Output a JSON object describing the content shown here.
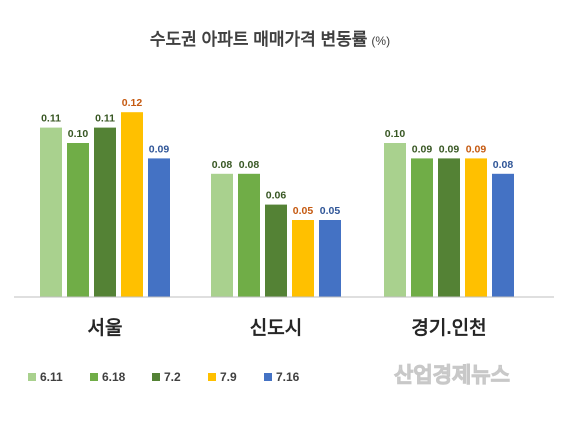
{
  "chart_data": {
    "type": "bar",
    "title": "수도권 아파트 매매가격 변동률",
    "title_unit": "(%)",
    "categories": [
      "서울",
      "신도시",
      "경기.인천"
    ],
    "series": [
      {
        "name": "6.11",
        "color": "#a9d18e",
        "values": [
          0.11,
          0.08,
          0.1
        ],
        "labels": [
          "0.11",
          "0.08",
          "0.10"
        ]
      },
      {
        "name": "6.18",
        "color": "#70ad47",
        "values": [
          0.1,
          0.08,
          0.09
        ],
        "labels": [
          "0.10",
          "0.08",
          "0.09"
        ]
      },
      {
        "name": "7.2",
        "color": "#548235",
        "values": [
          0.11,
          0.06,
          0.09
        ],
        "labels": [
          "0.11",
          "0.06",
          "0.09"
        ]
      },
      {
        "name": "7.9",
        "color": "#ffc000",
        "values": [
          0.12,
          0.05,
          0.09
        ],
        "labels": [
          "0.12",
          "0.05",
          "0.09"
        ]
      },
      {
        "name": "7.16",
        "color": "#4472c4",
        "values": [
          0.09,
          0.05,
          0.08
        ],
        "labels": [
          "0.09",
          "0.05",
          "0.08"
        ]
      }
    ],
    "label_colors": {
      "6.11": "#385723",
      "6.18": "#385723",
      "7.2": "#385723",
      "7.9": "#c55a11",
      "7.16": "#2f5597"
    },
    "ylim": [
      0,
      0.13
    ],
    "grid": false,
    "legend_position": "bottom-left"
  },
  "watermark": "산업경제뉴스"
}
